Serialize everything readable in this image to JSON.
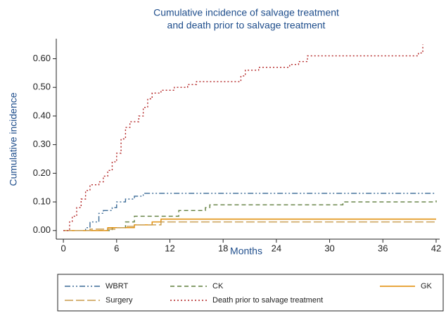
{
  "chart_data": {
    "type": "step",
    "title": [
      "Cumulative incidence of salvage treatment",
      "and death prior to salvage treatment"
    ],
    "x_label": "Months",
    "y_label": "Cumulative incidence",
    "xlim": [
      -0.8,
      42.4
    ],
    "ylim": [
      -0.03,
      0.67
    ],
    "xticks": [
      0,
      6,
      12,
      18,
      24,
      30,
      36,
      42
    ],
    "yticks": [
      {
        "value": 0,
        "label": "0.00"
      },
      {
        "value": 0.1,
        "label": "0.10"
      },
      {
        "value": 0.2,
        "label": "0.20"
      },
      {
        "value": 0.3,
        "label": "0.30"
      },
      {
        "value": 0.4,
        "label": "0.40"
      },
      {
        "value": 0.5,
        "label": "0.50"
      },
      {
        "value": 0.6,
        "label": "0.60"
      }
    ],
    "grid": false,
    "legend": "bottom",
    "series": [
      {
        "name": "WBRT",
        "color": "#3a6a96",
        "dash": "8 3 2 3 2 3",
        "x": [
          0,
          2.5,
          3,
          4,
          4.5,
          5.5,
          6,
          7,
          8,
          9,
          42
        ],
        "values": [
          0,
          0.01,
          0.03,
          0.06,
          0.07,
          0.08,
          0.1,
          0.11,
          0.12,
          0.13,
          0.13
        ]
      },
      {
        "name": "CK",
        "color": "#5f7d3c",
        "dash": "6 4",
        "x": [
          0,
          5.5,
          7,
          8,
          12,
          13,
          16,
          16.5,
          31,
          31.5,
          42
        ],
        "values": [
          0,
          0.01,
          0.03,
          0.05,
          0.05,
          0.07,
          0.08,
          0.09,
          0.09,
          0.1,
          0.105
        ]
      },
      {
        "name": "GK",
        "color": "#e08a00",
        "dash": "none",
        "x": [
          0,
          5,
          8,
          10,
          11,
          42
        ],
        "values": [
          0,
          0.01,
          0.02,
          0.03,
          0.04,
          0.04
        ]
      },
      {
        "name": "Surgery",
        "color": "#c89a4a",
        "dash": "12 4",
        "x": [
          0,
          3,
          6,
          7,
          8,
          11,
          42
        ],
        "values": [
          0,
          0.005,
          0.01,
          0.015,
          0.02,
          0.03,
          0.03
        ]
      },
      {
        "name": "Death prior to salvage treatment",
        "color": "#b22222",
        "dash": "2 3",
        "x": [
          0,
          0.7,
          1,
          1.5,
          2,
          2.5,
          3,
          4,
          4.5,
          5,
          5.5,
          6,
          6.5,
          7,
          7.5,
          8.5,
          9,
          9.5,
          10,
          11,
          12.5,
          14,
          15,
          20,
          20.5,
          22,
          25.5,
          26.5,
          27.5,
          40,
          40.5
        ],
        "values": [
          0,
          0.03,
          0.05,
          0.08,
          0.11,
          0.14,
          0.16,
          0.17,
          0.19,
          0.21,
          0.24,
          0.27,
          0.32,
          0.36,
          0.38,
          0.4,
          0.43,
          0.46,
          0.48,
          0.49,
          0.5,
          0.51,
          0.52,
          0.54,
          0.56,
          0.57,
          0.58,
          0.59,
          0.61,
          0.62,
          0.65
        ]
      }
    ]
  }
}
